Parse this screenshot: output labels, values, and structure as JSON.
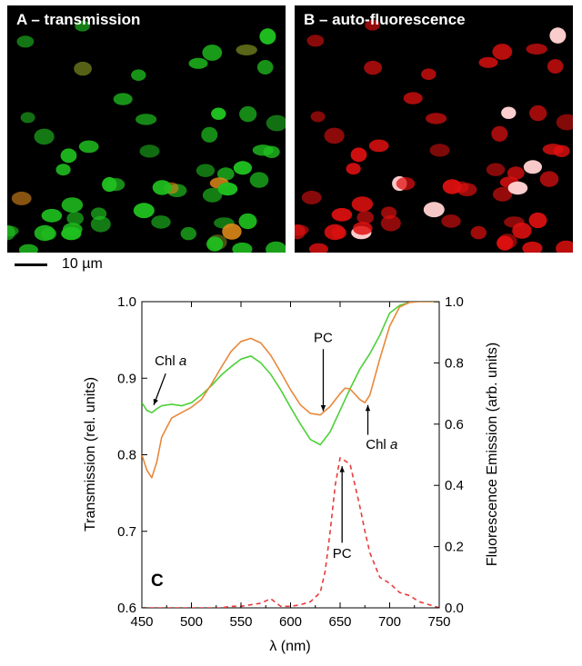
{
  "panels": {
    "a_title": "A – transmission",
    "b_title": "B – auto-fluorescence"
  },
  "scale_bar": {
    "label": "10 µm"
  },
  "colors": {
    "green_curve": "#4cd137",
    "orange_curve": "#e8883a",
    "red_dashed": "#e63c3c",
    "cell_green": "#1fbf1f",
    "cell_orange": "#e08a1a",
    "cell_red": "#e01010"
  },
  "chart_data": {
    "type": "line",
    "panel_label": "C",
    "xlabel": "λ (nm)",
    "ylabel_left": "Transmission (rel. units)",
    "ylabel_right": "Fluorescence Emission (arb. units)",
    "xlim": [
      450,
      750
    ],
    "ylim_left": [
      0.6,
      1.0
    ],
    "ylim_right": [
      0.0,
      1.0
    ],
    "x_ticks": [
      "450",
      "500",
      "550",
      "600",
      "650",
      "700",
      "750"
    ],
    "y_ticks_left": [
      "0.6",
      "0.7",
      "0.8",
      "0.9",
      "1.0"
    ],
    "y_ticks_right": [
      "0.0",
      "0.2",
      "0.4",
      "0.6",
      "0.8",
      "1.0"
    ],
    "series": [
      {
        "key": "green",
        "axis": "left",
        "style": "solid",
        "x": [
          450,
          455,
          460,
          465,
          470,
          480,
          490,
          500,
          510,
          520,
          530,
          540,
          550,
          560,
          570,
          580,
          590,
          600,
          610,
          620,
          630,
          640,
          650,
          660,
          670,
          680,
          690,
          700,
          710,
          720,
          730,
          740,
          750
        ],
        "y": [
          0.868,
          0.858,
          0.855,
          0.86,
          0.864,
          0.866,
          0.864,
          0.868,
          0.878,
          0.89,
          0.904,
          0.915,
          0.925,
          0.929,
          0.92,
          0.905,
          0.885,
          0.862,
          0.84,
          0.82,
          0.813,
          0.83,
          0.858,
          0.886,
          0.912,
          0.932,
          0.956,
          0.985,
          0.995,
          0.999,
          1.0,
          1.0,
          1.0
        ]
      },
      {
        "key": "orange",
        "axis": "left",
        "style": "solid",
        "x": [
          450,
          455,
          460,
          465,
          470,
          480,
          490,
          500,
          510,
          520,
          530,
          540,
          550,
          560,
          570,
          580,
          590,
          600,
          610,
          620,
          630,
          640,
          650,
          655,
          660,
          670,
          675,
          680,
          690,
          700,
          710,
          720,
          730,
          740,
          750
        ],
        "y": [
          0.8,
          0.78,
          0.77,
          0.79,
          0.823,
          0.848,
          0.855,
          0.862,
          0.872,
          0.892,
          0.914,
          0.935,
          0.948,
          0.952,
          0.946,
          0.93,
          0.908,
          0.885,
          0.865,
          0.854,
          0.852,
          0.863,
          0.88,
          0.887,
          0.886,
          0.872,
          0.868,
          0.878,
          0.925,
          0.968,
          0.993,
          0.999,
          1.0,
          1.0,
          1.0
        ]
      },
      {
        "key": "red",
        "axis": "right",
        "style": "dashed",
        "x": [
          450,
          460,
          470,
          480,
          490,
          500,
          510,
          520,
          530,
          540,
          550,
          560,
          570,
          580,
          590,
          600,
          610,
          620,
          630,
          635,
          640,
          645,
          650,
          655,
          660,
          665,
          670,
          675,
          680,
          690,
          700,
          710,
          720,
          730,
          740,
          750
        ],
        "y": [
          0.0,
          0.0,
          0.0,
          0.0,
          0.0,
          0.0,
          0.0,
          0.0,
          0.0,
          0.005,
          0.005,
          0.01,
          0.015,
          0.03,
          0.005,
          0.005,
          0.01,
          0.02,
          0.05,
          0.12,
          0.25,
          0.4,
          0.49,
          0.48,
          0.47,
          0.4,
          0.33,
          0.25,
          0.18,
          0.1,
          0.08,
          0.05,
          0.04,
          0.02,
          0.01,
          0.0
        ]
      }
    ],
    "annotations": [
      {
        "key": "chl_left",
        "label_plain": "Chl ",
        "label_italic": "a"
      },
      {
        "key": "pc_top",
        "label_plain": "PC",
        "label_italic": ""
      },
      {
        "key": "chl_right",
        "label_plain": "Chl ",
        "label_italic": "a"
      },
      {
        "key": "pc_bottom",
        "label_plain": "PC",
        "label_italic": ""
      }
    ]
  }
}
